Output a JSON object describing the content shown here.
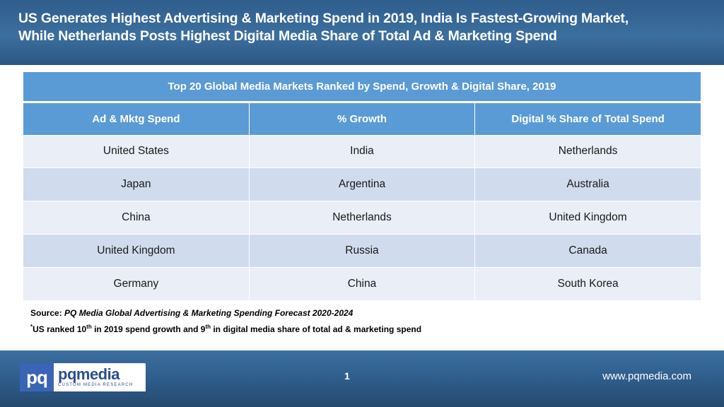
{
  "slide": {
    "title_line1": "US Generates Highest Advertising & Marketing Spend in 2019, India Is Fastest-Growing Market,",
    "title_line2": "While Netherlands Posts Highest Digital Media Share of Total Ad & Marketing Spend"
  },
  "table": {
    "title": "Top 20 Global Media Markets Ranked by Spend, Growth & Digital Share, 2019",
    "headers": [
      "Ad & Mktg Spend",
      "% Growth",
      "Digital % Share of Total Spend"
    ],
    "rows": [
      [
        "United States",
        "India",
        "Netherlands"
      ],
      [
        "Japan",
        "Argentina",
        "Australia"
      ],
      [
        "China",
        "Netherlands",
        "United Kingdom"
      ],
      [
        "United Kingdom",
        "Russia",
        "Canada"
      ],
      [
        "Germany",
        "China",
        "South Korea"
      ]
    ]
  },
  "source": {
    "label": "Source: ",
    "text": "PQ Media Global Advertising & Marketing Spending Forecast 2020-2024"
  },
  "footnote": {
    "marker": "*",
    "part1": "US ranked 10",
    "sup1": "th",
    "part2": " in 2019 spend growth and 9",
    "sup2": "th",
    "part3": " in digital media share of total ad & marketing spend"
  },
  "footer": {
    "logo_mark": "pq",
    "logo_brand": "pqmedia",
    "logo_tagline": "CUSTOM MEDIA RESEARCH",
    "page_number": "1",
    "website": "www.pqmedia.com"
  }
}
